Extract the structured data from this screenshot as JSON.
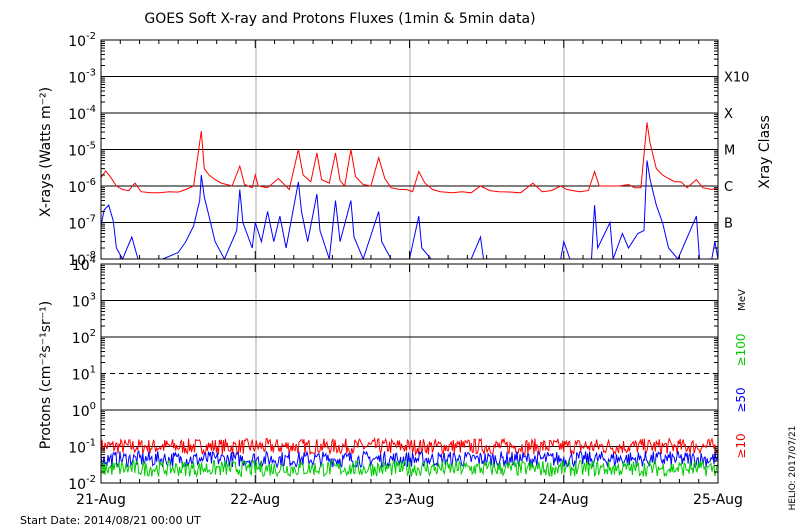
{
  "chart_data": [
    {
      "type": "line",
      "panel": "xrays",
      "title": "GOES Soft X-ray and Protons Fluxes   (1min & 5min data)",
      "ylabel": "X-rays (Watts m⁻²)",
      "yscale": "log",
      "ylim": [
        1e-08,
        0.01
      ],
      "y_ticks": [
        {
          "value": 1e-08,
          "base": "10",
          "exp": "-8"
        },
        {
          "value": 1e-07,
          "base": "10",
          "exp": "-7"
        },
        {
          "value": 1e-06,
          "base": "10",
          "exp": "-6"
        },
        {
          "value": 1e-05,
          "base": "10",
          "exp": "-5"
        },
        {
          "value": 0.0001,
          "base": "10",
          "exp": "-4"
        },
        {
          "value": 0.001,
          "base": "10",
          "exp": "-3"
        },
        {
          "value": 0.01,
          "base": "10",
          "exp": "-2"
        }
      ],
      "right_axis_label": "Xray Class",
      "class_labels": [
        {
          "label": "B",
          "value": 1e-07
        },
        {
          "label": "C",
          "value": 1e-06
        },
        {
          "label": "M",
          "value": 1e-05
        },
        {
          "label": "X",
          "value": 0.0001
        },
        {
          "label": "X10",
          "value": 0.001
        }
      ],
      "grid": true,
      "x": [
        "2014-08-21",
        "2014-08-22",
        "2014-08-23",
        "2014-08-24",
        "2014-08-25"
      ],
      "series": [
        {
          "color": "#ff0000",
          "points": [
            [
              0.0,
              1.7e-06
            ],
            [
              0.03,
              2.6e-06
            ],
            [
              0.06,
              1.8e-06
            ],
            [
              0.1,
              1e-06
            ],
            [
              0.14,
              8e-07
            ],
            [
              0.18,
              7.5e-07
            ],
            [
              0.22,
              1.2e-06
            ],
            [
              0.26,
              7e-07
            ],
            [
              0.32,
              6.5e-07
            ],
            [
              0.38,
              6.5e-07
            ],
            [
              0.44,
              7e-07
            ],
            [
              0.5,
              6.8e-07
            ],
            [
              0.55,
              8e-07
            ],
            [
              0.6,
              1e-06
            ],
            [
              0.65,
              3.2e-05
            ],
            [
              0.67,
              3e-06
            ],
            [
              0.7,
              2e-06
            ],
            [
              0.74,
              1.5e-06
            ],
            [
              0.78,
              1.2e-06
            ],
            [
              0.85,
              1e-06
            ],
            [
              0.9,
              3.5e-06
            ],
            [
              0.93,
              1.1e-06
            ],
            [
              0.98,
              9e-07
            ],
            [
              1.0,
              2e-06
            ],
            [
              1.02,
              1e-06
            ],
            [
              1.08,
              9e-07
            ],
            [
              1.15,
              1.6e-06
            ],
            [
              1.22,
              8e-07
            ],
            [
              1.28,
              1e-05
            ],
            [
              1.31,
              2e-06
            ],
            [
              1.36,
              1.3e-06
            ],
            [
              1.4,
              8e-06
            ],
            [
              1.43,
              1.5e-06
            ],
            [
              1.48,
              1.2e-06
            ],
            [
              1.52,
              8e-06
            ],
            [
              1.55,
              1.4e-06
            ],
            [
              1.58,
              1e-06
            ],
            [
              1.62,
              1e-05
            ],
            [
              1.65,
              1.8e-06
            ],
            [
              1.7,
              1.1e-06
            ],
            [
              1.75,
              1e-06
            ],
            [
              1.8,
              6e-06
            ],
            [
              1.84,
              1.6e-06
            ],
            [
              1.88,
              9e-07
            ],
            [
              1.94,
              8e-07
            ],
            [
              1.98,
              8e-07
            ],
            [
              2.02,
              7e-07
            ],
            [
              2.06,
              2.5e-06
            ],
            [
              2.1,
              1.2e-06
            ],
            [
              2.15,
              8e-07
            ],
            [
              2.2,
              7e-07
            ],
            [
              2.28,
              6.5e-07
            ],
            [
              2.34,
              7e-07
            ],
            [
              2.4,
              6.5e-07
            ],
            [
              2.46,
              1e-06
            ],
            [
              2.52,
              7.5e-07
            ],
            [
              2.58,
              7e-07
            ],
            [
              2.66,
              6.8e-07
            ],
            [
              2.72,
              6.5e-07
            ],
            [
              2.8,
              1.2e-06
            ],
            [
              2.86,
              7e-07
            ],
            [
              2.92,
              7.5e-07
            ],
            [
              2.98,
              1e-06
            ],
            [
              3.02,
              8e-07
            ],
            [
              3.1,
              7e-07
            ],
            [
              3.16,
              7.5e-07
            ],
            [
              3.2,
              2.5e-06
            ],
            [
              3.23,
              1e-06
            ],
            [
              3.3,
              1e-06
            ],
            [
              3.36,
              1e-06
            ],
            [
              3.42,
              1.1e-06
            ],
            [
              3.46,
              9e-07
            ],
            [
              3.5,
              9e-07
            ],
            [
              3.54,
              5.5e-05
            ],
            [
              3.56,
              1.5e-05
            ],
            [
              3.6,
              3e-06
            ],
            [
              3.64,
              2e-06
            ],
            [
              3.68,
              1.6e-06
            ],
            [
              3.72,
              1.3e-06
            ],
            [
              3.76,
              1.3e-06
            ],
            [
              3.8,
              9e-07
            ],
            [
              3.86,
              1.5e-06
            ],
            [
              3.9,
              9e-07
            ],
            [
              3.96,
              8e-07
            ],
            [
              4.0,
              9e-07
            ]
          ]
        },
        {
          "color": "#0000ff",
          "points": [
            [
              0.0,
              8e-08
            ],
            [
              0.02,
              2.2e-07
            ],
            [
              0.05,
              3e-07
            ],
            [
              0.08,
              1.1e-07
            ],
            [
              0.1,
              2e-08
            ],
            [
              0.14,
              8e-09
            ],
            [
              0.2,
              4e-08
            ],
            [
              0.24,
              8e-09
            ],
            [
              0.3,
              8e-09
            ],
            [
              0.4,
              8e-09
            ],
            [
              0.5,
              1.5e-08
            ],
            [
              0.55,
              3e-08
            ],
            [
              0.6,
              8e-08
            ],
            [
              0.64,
              4e-07
            ],
            [
              0.65,
              2e-06
            ],
            [
              0.67,
              5e-07
            ],
            [
              0.7,
              1.5e-07
            ],
            [
              0.74,
              3e-08
            ],
            [
              0.8,
              8e-09
            ],
            [
              0.88,
              6e-08
            ],
            [
              0.9,
              8e-07
            ],
            [
              0.92,
              1e-07
            ],
            [
              0.98,
              2e-08
            ],
            [
              1.0,
              1e-07
            ],
            [
              1.04,
              3e-08
            ],
            [
              1.08,
              2e-07
            ],
            [
              1.12,
              3e-08
            ],
            [
              1.16,
              1.5e-07
            ],
            [
              1.2,
              2e-08
            ],
            [
              1.28,
              1.3e-06
            ],
            [
              1.3,
              2e-07
            ],
            [
              1.34,
              3e-08
            ],
            [
              1.4,
              6e-07
            ],
            [
              1.42,
              6e-08
            ],
            [
              1.48,
              8e-09
            ],
            [
              1.52,
              4e-07
            ],
            [
              1.55,
              3e-08
            ],
            [
              1.62,
              4e-07
            ],
            [
              1.64,
              4e-08
            ],
            [
              1.7,
              8e-09
            ],
            [
              1.8,
              2e-07
            ],
            [
              1.82,
              3e-08
            ],
            [
              1.88,
              8e-09
            ],
            [
              2.0,
              8e-09
            ],
            [
              2.06,
              1.5e-07
            ],
            [
              2.08,
              2e-08
            ],
            [
              2.14,
              8e-09
            ],
            [
              2.4,
              8e-09
            ],
            [
              2.46,
              4e-08
            ],
            [
              2.48,
              8e-09
            ],
            [
              2.8,
              8e-09
            ],
            [
              2.98,
              8e-09
            ],
            [
              3.0,
              3e-08
            ],
            [
              3.04,
              8e-09
            ],
            [
              3.18,
              1e-08
            ],
            [
              3.2,
              3e-07
            ],
            [
              3.22,
              2e-08
            ],
            [
              3.3,
              1e-07
            ],
            [
              3.32,
              1e-08
            ],
            [
              3.38,
              5e-08
            ],
            [
              3.42,
              2e-08
            ],
            [
              3.48,
              5e-08
            ],
            [
              3.52,
              6e-08
            ],
            [
              3.54,
              5e-06
            ],
            [
              3.56,
              1.5e-06
            ],
            [
              3.6,
              3e-07
            ],
            [
              3.64,
              1e-07
            ],
            [
              3.68,
              2e-08
            ],
            [
              3.74,
              8e-09
            ],
            [
              3.86,
              1.5e-07
            ],
            [
              3.88,
              1e-08
            ],
            [
              3.96,
              8e-09
            ],
            [
              3.98,
              3e-08
            ],
            [
              4.0,
              8e-09
            ]
          ]
        }
      ]
    },
    {
      "type": "line",
      "panel": "protons",
      "ylabel": "Protons (cm⁻²s⁻¹sr⁻¹)",
      "yscale": "log",
      "ylim": [
        0.01,
        10000
      ],
      "y_ticks": [
        {
          "value": 0.01,
          "base": "10",
          "exp": "-2"
        },
        {
          "value": 0.1,
          "base": "10",
          "exp": "-1"
        },
        {
          "value": 1,
          "base": "10",
          "exp": "0"
        },
        {
          "value": 10,
          "base": "10",
          "exp": "1"
        },
        {
          "value": 100,
          "base": "10",
          "exp": "2"
        },
        {
          "value": 1000,
          "base": "10",
          "exp": "3"
        },
        {
          "value": 10000,
          "base": "10",
          "exp": "4"
        }
      ],
      "threshold_line": 10,
      "grid": true,
      "x": [
        "2014-08-21",
        "2014-08-22",
        "2014-08-23",
        "2014-08-24",
        "2014-08-25"
      ],
      "x_tick_labels": [
        "21-Aug",
        "22-Aug",
        "23-Aug",
        "24-Aug",
        "25-Aug"
      ],
      "energy_unit": "MeV",
      "series": [
        {
          "name": "≥10",
          "color": "#ff0000",
          "baseline": 0.1,
          "spread": 0.22
        },
        {
          "name": "≥50",
          "color": "#0000ff",
          "baseline": 0.045,
          "spread": 0.22
        },
        {
          "name": "≥100",
          "color": "#00cc00",
          "baseline": 0.025,
          "spread": 0.22
        }
      ]
    }
  ],
  "footer": {
    "start_date": "Start Date: 2014/08/21 00:00 UT",
    "credit": "HELIO: 2017/07/21"
  }
}
